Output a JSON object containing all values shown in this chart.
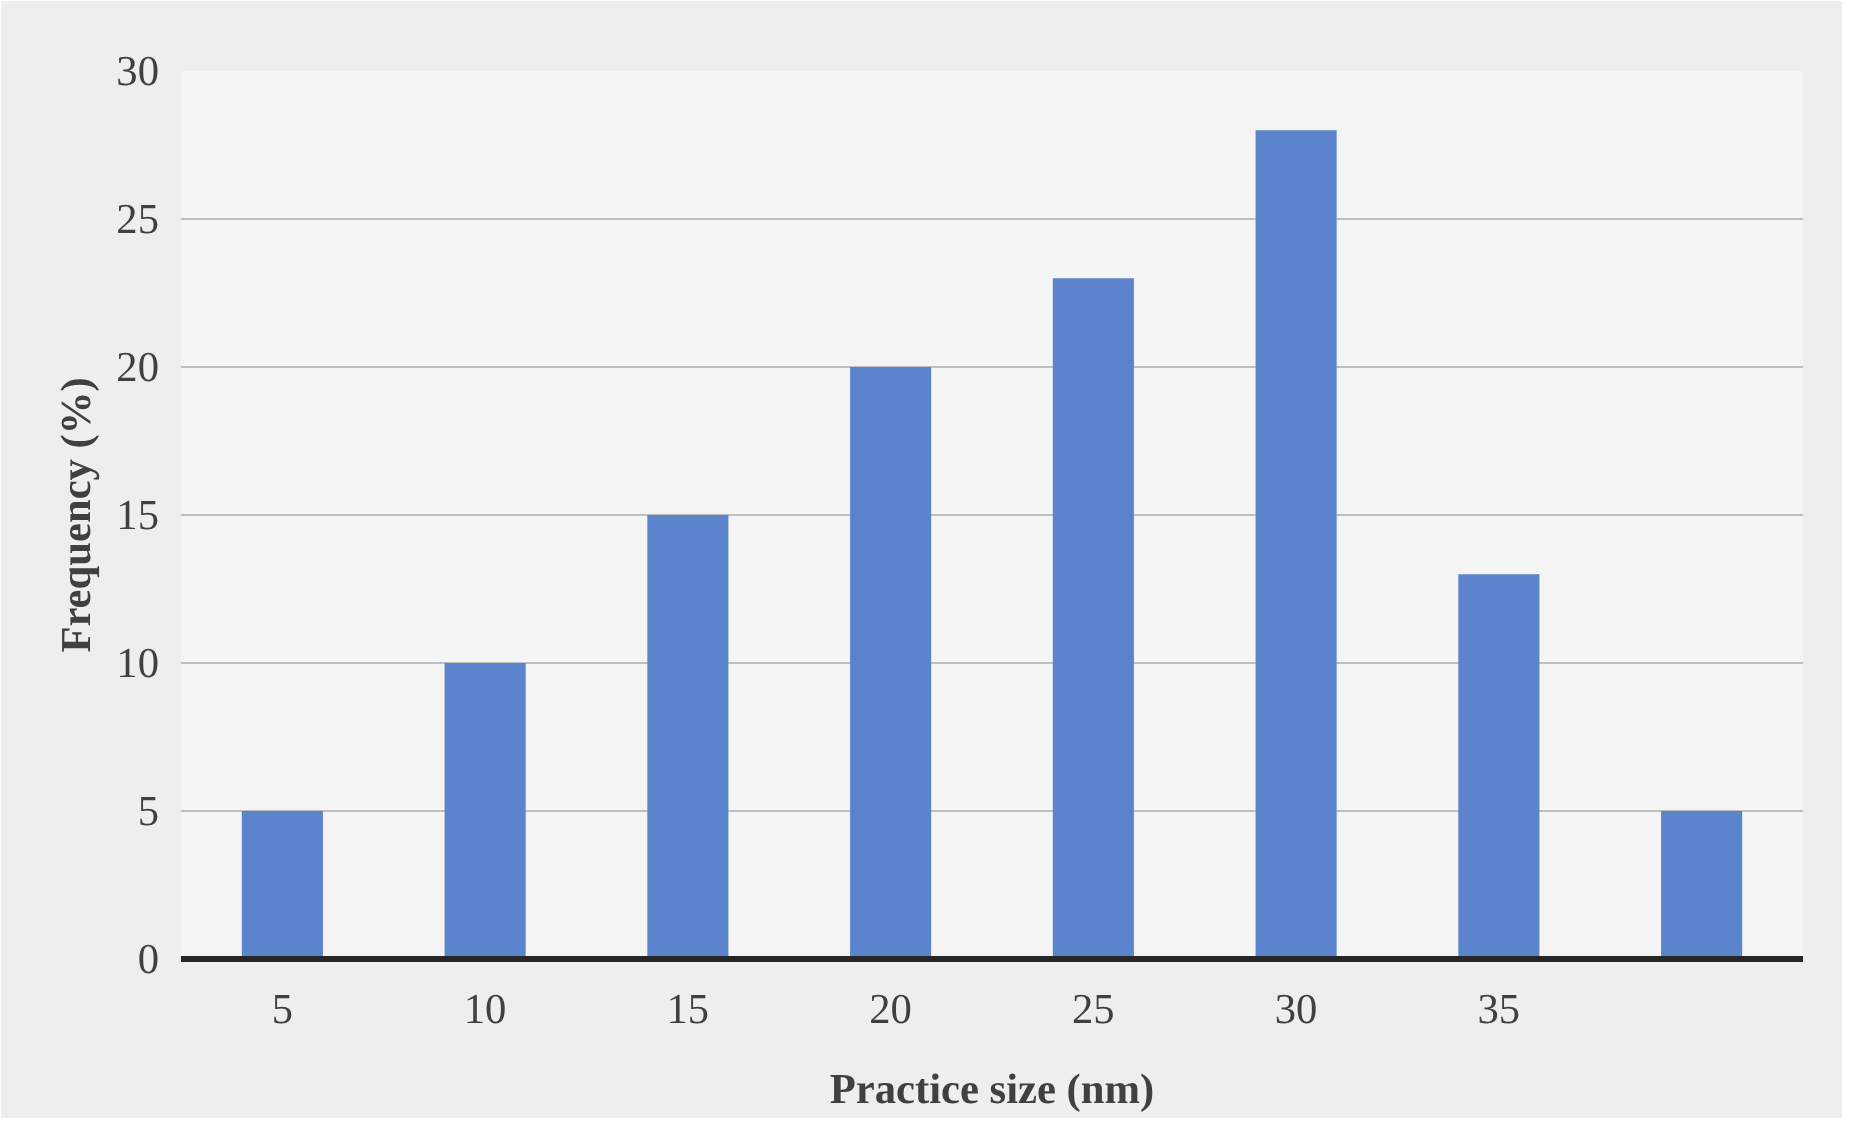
{
  "chart_data": {
    "type": "bar",
    "xlabel": "Practice size (nm)",
    "ylabel": "Frequency (%)",
    "categories": [
      "5",
      "10",
      "15",
      "20",
      "25",
      "30",
      "35",
      null
    ],
    "values": [
      5,
      10,
      15,
      20,
      23,
      28,
      13,
      5
    ],
    "color": "#5b84cc",
    "ylim": [
      0,
      30
    ],
    "yticks": [
      0,
      5,
      10,
      15,
      20,
      25,
      30
    ],
    "grid": "y"
  }
}
